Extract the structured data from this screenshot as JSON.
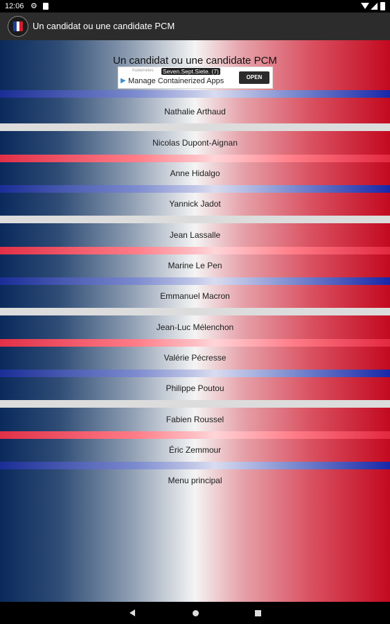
{
  "status_bar": {
    "time": "12:06"
  },
  "app_bar": {
    "title": "Un candidat ou une candidate PCM"
  },
  "heading": "Un candidat ou une candidate PCM",
  "ad": {
    "small_text": "Kubernetes",
    "badge": "Seven.Sept.Siete. (7)",
    "text": "Manage Containerized Apps",
    "button": "OPEN"
  },
  "items": [
    {
      "label": "Nathalie Arthaud"
    },
    {
      "label": "Nicolas Dupont-Aignan"
    },
    {
      "label": "Anne Hidalgo"
    },
    {
      "label": "Yannick Jadot"
    },
    {
      "label": "Jean Lassalle"
    },
    {
      "label": "Marine Le Pen"
    },
    {
      "label": "Emmanuel Macron"
    },
    {
      "label": "Jean-Luc Mélenchon"
    },
    {
      "label": "Valérie Pécresse"
    },
    {
      "label": "Philippe Poutou"
    },
    {
      "label": "Fabien Roussel"
    },
    {
      "label": "Éric Zemmour"
    },
    {
      "label": "Menu principal"
    }
  ],
  "colors": {
    "flag_blue": "#0a2a5c",
    "flag_white": "#f4f4f4",
    "flag_red": "#c3091f"
  }
}
